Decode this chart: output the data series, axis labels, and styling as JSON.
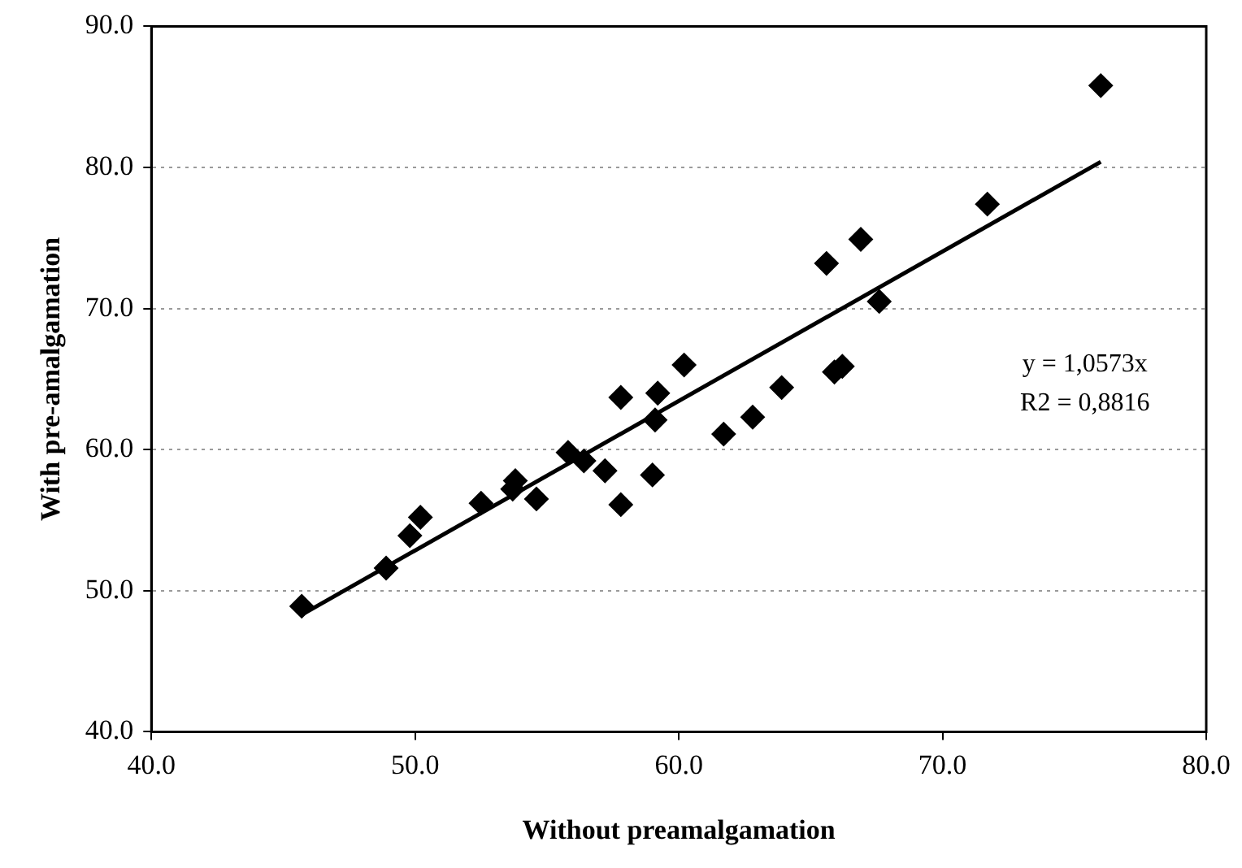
{
  "chart_data": {
    "type": "scatter",
    "xlabel": "Without preamalgamation",
    "ylabel": "With pre-amalgamation",
    "xlim": [
      40,
      80
    ],
    "xticks": [
      {
        "value": 40,
        "label": "40.0"
      },
      {
        "value": 50,
        "label": "50.0"
      },
      {
        "value": 60,
        "label": "60.0"
      },
      {
        "value": 70,
        "label": "70.0"
      },
      {
        "value": 80,
        "label": "80.0"
      }
    ],
    "ylim": [
      40,
      90
    ],
    "yticks": [
      {
        "value": 40,
        "label": "40.0"
      },
      {
        "value": 50,
        "label": "50.0"
      },
      {
        "value": 60,
        "label": "60.0"
      },
      {
        "value": 70,
        "label": "70.0"
      },
      {
        "value": 80,
        "label": "80.0"
      },
      {
        "value": 90,
        "label": "90.0"
      }
    ],
    "grid": "y",
    "legend": false,
    "marker": "diamond",
    "series": [
      {
        "color": "#000000",
        "x": [
          45.7,
          48.9,
          49.8,
          50.2,
          52.5,
          53.7,
          53.8,
          54.6,
          55.8,
          56.2,
          56.4,
          57.2,
          57.8,
          57.8,
          59.0,
          59.1,
          59.2,
          60.2,
          61.7,
          62.8,
          63.9,
          65.6,
          65.9,
          66.2,
          66.9,
          67.6,
          71.7,
          76.0
        ],
        "values": [
          48.9,
          51.6,
          53.9,
          55.2,
          56.2,
          57.2,
          57.8,
          56.5,
          59.8,
          null,
          59.2,
          58.5,
          63.7,
          56.1,
          58.2,
          62.1,
          64.0,
          66.0,
          61.1,
          62.3,
          64.4,
          73.2,
          65.5,
          65.9,
          74.9,
          70.5,
          77.4,
          85.8
        ]
      },
      {
        "type": "line",
        "color": "#000000",
        "marker": "none",
        "x": [
          45.7,
          76.0
        ],
        "values": [
          48.3,
          80.4
        ]
      }
    ],
    "annotations": [
      "y = 1,0573x",
      "R2 = 0,8816"
    ]
  }
}
